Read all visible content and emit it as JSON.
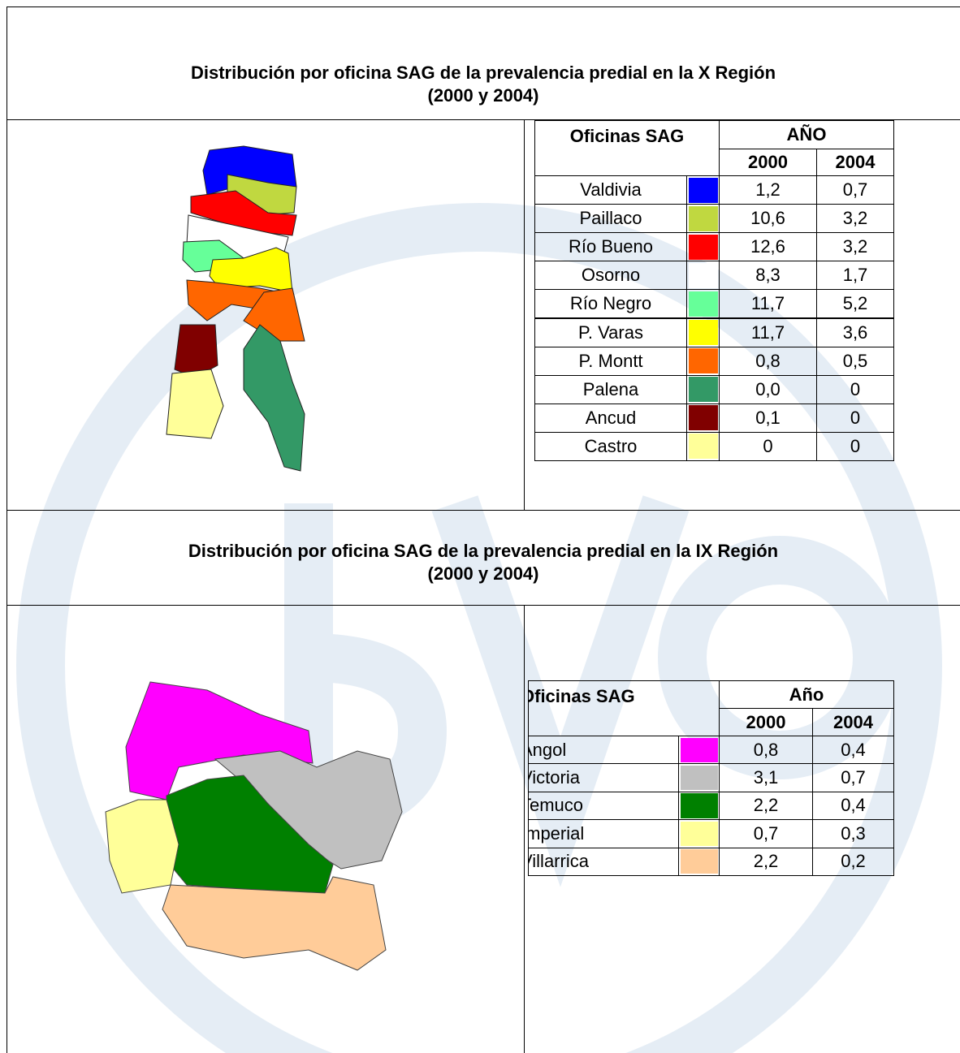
{
  "sections": [
    {
      "title_lines": [
        "Distribución por oficina SAG de la prevalencia predial en la X Región",
        "(2000 y 2004)"
      ],
      "table": {
        "header": "Oficinas SAG",
        "year_header": "AÑO",
        "years": [
          "2000",
          "2004"
        ],
        "rows": [
          {
            "name": "Valdivia",
            "color": "#0000ff",
            "values": [
              "1,2",
              "0,7"
            ]
          },
          {
            "name": "Paillaco",
            "color": "#c0d840",
            "values": [
              "10,6",
              "3,2"
            ]
          },
          {
            "name": "Río Bueno",
            "color": "#ff0000",
            "values": [
              "12,6",
              "3,2"
            ]
          },
          {
            "name": "Osorno",
            "color": "#ffffff",
            "values": [
              "8,3",
              "1,7"
            ]
          },
          {
            "name": "Río Negro",
            "color": "#66ff99",
            "values": [
              "11,7",
              "5,2"
            ]
          },
          {
            "name": "P. Varas",
            "color": "#ffff00",
            "values": [
              "11,7",
              "3,6"
            ]
          },
          {
            "name": "P. Montt",
            "color": "#ff6600",
            "values": [
              "0,8",
              "0,5"
            ]
          },
          {
            "name": "Palena",
            "color": "#339966",
            "values": [
              "0,0",
              "0"
            ]
          },
          {
            "name": "Ancud",
            "color": "#800000",
            "values": [
              "0,1",
              "0"
            ]
          },
          {
            "name": "Castro",
            "color": "#ffff99",
            "values": [
              "0",
              "0"
            ]
          }
        ]
      }
    },
    {
      "title_lines": [
        "Distribución por oficina SAG de la prevalencia predial en la IX Región",
        "(2000 y 2004)"
      ],
      "table": {
        "header": "Oficinas SAG",
        "year_header": "Año",
        "years": [
          "2000",
          "2004"
        ],
        "rows": [
          {
            "name": "Angol",
            "color": "#ff00ff",
            "values": [
              "0,8",
              "0,4"
            ]
          },
          {
            "name": "Victoria",
            "color": "#c0c0c0",
            "values": [
              "3,1",
              "0,7"
            ]
          },
          {
            "name": "Temuco",
            "color": "#008000",
            "values": [
              "2,2",
              "0,4"
            ]
          },
          {
            "name": "Imperial",
            "color": "#ffff99",
            "values": [
              "0,7",
              "0,3"
            ]
          },
          {
            "name": "Villarrica",
            "color": "#ffcc99",
            "values": [
              "2,2",
              "0,2"
            ]
          }
        ]
      }
    }
  ]
}
